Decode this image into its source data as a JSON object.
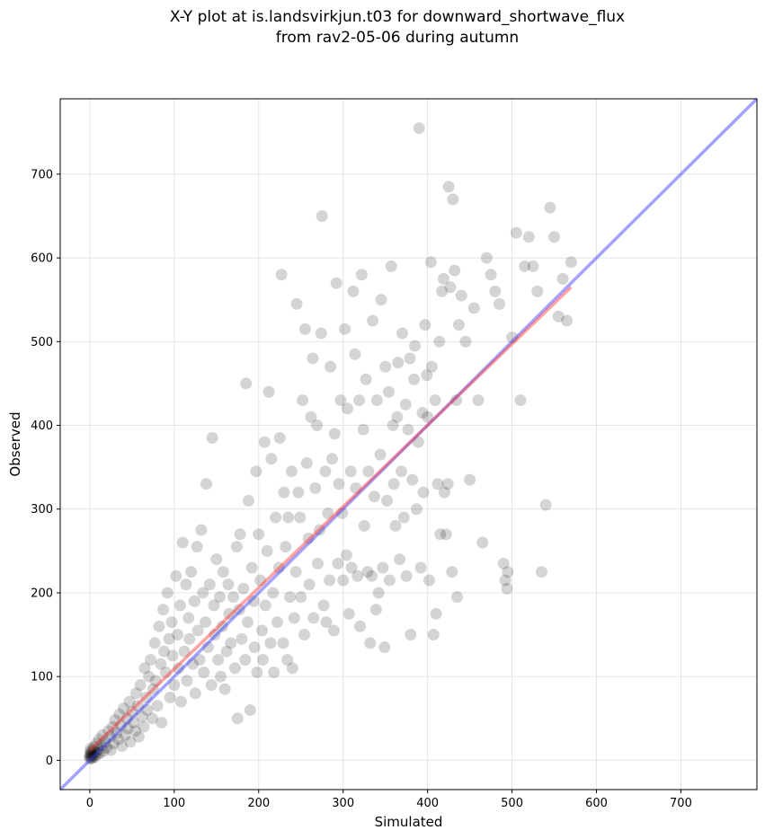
{
  "chart_data": {
    "type": "scatter",
    "title": "X-Y plot at is.landsvirkjun.t03 for downward_shortwave_flux\nfrom rav2-05-06 during autumn",
    "xlabel": "Simulated",
    "ylabel": "Observed",
    "xlim": [
      -35,
      790
    ],
    "ylim": [
      -35,
      790
    ],
    "xticks": [
      0,
      100,
      200,
      300,
      400,
      500,
      600,
      700
    ],
    "yticks": [
      0,
      100,
      200,
      300,
      400,
      500,
      600,
      700
    ],
    "grid": true,
    "point_color": "#000000",
    "identity_line": {
      "x": [
        -35,
        790
      ],
      "y": [
        -35,
        790
      ],
      "color": "#3333ff"
    },
    "regression_line": {
      "x": [
        0,
        570
      ],
      "y": [
        12,
        565
      ],
      "color": "#ff3333"
    },
    "points": [
      [
        0,
        2
      ],
      [
        0,
        4
      ],
      [
        0,
        6
      ],
      [
        1,
        8
      ],
      [
        1,
        11
      ],
      [
        1,
        14
      ],
      [
        2,
        2
      ],
      [
        2,
        5
      ],
      [
        3,
        3
      ],
      [
        3,
        9
      ],
      [
        4,
        12
      ],
      [
        5,
        6
      ],
      [
        5,
        16
      ],
      [
        6,
        4
      ],
      [
        7,
        10
      ],
      [
        8,
        20
      ],
      [
        9,
        7
      ],
      [
        10,
        13
      ],
      [
        11,
        25
      ],
      [
        12,
        9
      ],
      [
        14,
        18
      ],
      [
        15,
        30
      ],
      [
        16,
        11
      ],
      [
        18,
        22
      ],
      [
        20,
        15
      ],
      [
        22,
        35
      ],
      [
        24,
        28
      ],
      [
        25,
        12
      ],
      [
        27,
        40
      ],
      [
        28,
        20
      ],
      [
        30,
        48
      ],
      [
        32,
        33
      ],
      [
        34,
        25
      ],
      [
        35,
        55
      ],
      [
        37,
        42
      ],
      [
        38,
        17
      ],
      [
        40,
        62
      ],
      [
        42,
        30
      ],
      [
        44,
        50
      ],
      [
        45,
        38
      ],
      [
        47,
        70
      ],
      [
        48,
        22
      ],
      [
        50,
        58
      ],
      [
        52,
        45
      ],
      [
        54,
        35
      ],
      [
        55,
        80
      ],
      [
        57,
        65
      ],
      [
        58,
        28
      ],
      [
        60,
        90
      ],
      [
        62,
        52
      ],
      [
        64,
        40
      ],
      [
        65,
        110
      ],
      [
        67,
        75
      ],
      [
        68,
        60
      ],
      [
        70,
        100
      ],
      [
        72,
        120
      ],
      [
        74,
        50
      ],
      [
        75,
        85
      ],
      [
        77,
        140
      ],
      [
        78,
        95
      ],
      [
        80,
        65
      ],
      [
        82,
        160
      ],
      [
        84,
        115
      ],
      [
        85,
        45
      ],
      [
        87,
        180
      ],
      [
        88,
        130
      ],
      [
        90,
        105
      ],
      [
        92,
        200
      ],
      [
        94,
        145
      ],
      [
        95,
        75
      ],
      [
        97,
        165
      ],
      [
        98,
        125
      ],
      [
        100,
        90
      ],
      [
        102,
        220
      ],
      [
        104,
        150
      ],
      [
        105,
        110
      ],
      [
        107,
        185
      ],
      [
        108,
        70
      ],
      [
        110,
        260
      ],
      [
        112,
        130
      ],
      [
        114,
        210
      ],
      [
        115,
        95
      ],
      [
        117,
        170
      ],
      [
        118,
        145
      ],
      [
        120,
        225
      ],
      [
        122,
        115
      ],
      [
        124,
        190
      ],
      [
        125,
        80
      ],
      [
        127,
        255
      ],
      [
        128,
        155
      ],
      [
        130,
        120
      ],
      [
        132,
        275
      ],
      [
        134,
        200
      ],
      [
        135,
        105
      ],
      [
        137,
        165
      ],
      [
        138,
        330
      ],
      [
        140,
        135
      ],
      [
        142,
        210
      ],
      [
        144,
        90
      ],
      [
        145,
        385
      ],
      [
        147,
        185
      ],
      [
        148,
        150
      ],
      [
        150,
        240
      ],
      [
        152,
        120
      ],
      [
        154,
        195
      ],
      [
        155,
        100
      ],
      [
        157,
        160
      ],
      [
        158,
        225
      ],
      [
        160,
        85
      ],
      [
        162,
        130
      ],
      [
        164,
        210
      ],
      [
        165,
        175
      ],
      [
        167,
        140
      ],
      [
        170,
        195
      ],
      [
        172,
        110
      ],
      [
        174,
        255
      ],
      [
        175,
        50
      ],
      [
        177,
        180
      ],
      [
        178,
        270
      ],
      [
        180,
        145
      ],
      [
        182,
        205
      ],
      [
        184,
        120
      ],
      [
        185,
        450
      ],
      [
        187,
        165
      ],
      [
        188,
        310
      ],
      [
        190,
        60
      ],
      [
        192,
        230
      ],
      [
        194,
        190
      ],
      [
        195,
        135
      ],
      [
        197,
        345
      ],
      [
        198,
        105
      ],
      [
        200,
        270
      ],
      [
        202,
        215
      ],
      [
        204,
        155
      ],
      [
        205,
        120
      ],
      [
        207,
        380
      ],
      [
        208,
        185
      ],
      [
        210,
        250
      ],
      [
        212,
        440
      ],
      [
        214,
        140
      ],
      [
        215,
        360
      ],
      [
        217,
        200
      ],
      [
        218,
        105
      ],
      [
        220,
        290
      ],
      [
        222,
        165
      ],
      [
        224,
        230
      ],
      [
        225,
        385
      ],
      [
        227,
        580
      ],
      [
        229,
        140
      ],
      [
        230,
        320
      ],
      [
        232,
        255
      ],
      [
        234,
        120
      ],
      [
        235,
        290
      ],
      [
        237,
        195
      ],
      [
        239,
        345
      ],
      [
        240,
        110
      ],
      [
        242,
        170
      ],
      [
        244,
        225
      ],
      [
        245,
        545
      ],
      [
        247,
        320
      ],
      [
        249,
        290
      ],
      [
        250,
        195
      ],
      [
        252,
        430
      ],
      [
        254,
        150
      ],
      [
        255,
        515
      ],
      [
        257,
        355
      ],
      [
        259,
        265
      ],
      [
        260,
        210
      ],
      [
        262,
        410
      ],
      [
        264,
        480
      ],
      [
        265,
        170
      ],
      [
        267,
        325
      ],
      [
        269,
        400
      ],
      [
        270,
        235
      ],
      [
        272,
        275
      ],
      [
        274,
        510
      ],
      [
        275,
        650
      ],
      [
        277,
        185
      ],
      [
        279,
        345
      ],
      [
        280,
        165
      ],
      [
        282,
        295
      ],
      [
        284,
        215
      ],
      [
        285,
        470
      ],
      [
        287,
        360
      ],
      [
        289,
        155
      ],
      [
        290,
        390
      ],
      [
        292,
        570
      ],
      [
        294,
        235
      ],
      [
        295,
        330
      ],
      [
        297,
        430
      ],
      [
        299,
        295
      ],
      [
        300,
        215
      ],
      [
        302,
        515
      ],
      [
        304,
        245
      ],
      [
        305,
        420
      ],
      [
        307,
        175
      ],
      [
        309,
        345
      ],
      [
        310,
        230
      ],
      [
        312,
        560
      ],
      [
        314,
        485
      ],
      [
        315,
        325
      ],
      [
        317,
        220
      ],
      [
        319,
        430
      ],
      [
        320,
        160
      ],
      [
        322,
        580
      ],
      [
        324,
        395
      ],
      [
        325,
        280
      ],
      [
        327,
        455
      ],
      [
        329,
        225
      ],
      [
        330,
        345
      ],
      [
        332,
        140
      ],
      [
        334,
        220
      ],
      [
        335,
        525
      ],
      [
        337,
        315
      ],
      [
        339,
        180
      ],
      [
        340,
        430
      ],
      [
        342,
        200
      ],
      [
        344,
        365
      ],
      [
        345,
        550
      ],
      [
        347,
        230
      ],
      [
        349,
        135
      ],
      [
        350,
        470
      ],
      [
        352,
        310
      ],
      [
        354,
        440
      ],
      [
        355,
        215
      ],
      [
        357,
        590
      ],
      [
        359,
        400
      ],
      [
        360,
        330
      ],
      [
        362,
        280
      ],
      [
        364,
        410
      ],
      [
        365,
        475
      ],
      [
        367,
        240
      ],
      [
        369,
        345
      ],
      [
        370,
        510
      ],
      [
        372,
        290
      ],
      [
        374,
        425
      ],
      [
        375,
        220
      ],
      [
        377,
        395
      ],
      [
        379,
        480
      ],
      [
        380,
        150
      ],
      [
        382,
        335
      ],
      [
        384,
        455
      ],
      [
        385,
        495
      ],
      [
        387,
        300
      ],
      [
        389,
        380
      ],
      [
        390,
        755
      ],
      [
        392,
        230
      ],
      [
        394,
        415
      ],
      [
        395,
        320
      ],
      [
        397,
        520
      ],
      [
        399,
        460
      ],
      [
        400,
        410
      ],
      [
        402,
        215
      ],
      [
        404,
        595
      ],
      [
        405,
        470
      ],
      [
        407,
        150
      ],
      [
        409,
        430
      ],
      [
        410,
        175
      ],
      [
        412,
        330
      ],
      [
        414,
        500
      ],
      [
        415,
        270
      ],
      [
        417,
        560
      ],
      [
        419,
        575
      ],
      [
        420,
        320
      ],
      [
        422,
        270
      ],
      [
        424,
        330
      ],
      [
        425,
        685
      ],
      [
        427,
        565
      ],
      [
        429,
        225
      ],
      [
        430,
        670
      ],
      [
        432,
        585
      ],
      [
        434,
        430
      ],
      [
        435,
        195
      ],
      [
        437,
        520
      ],
      [
        440,
        555
      ],
      [
        445,
        500
      ],
      [
        450,
        335
      ],
      [
        455,
        540
      ],
      [
        460,
        430
      ],
      [
        465,
        260
      ],
      [
        470,
        600
      ],
      [
        475,
        580
      ],
      [
        480,
        560
      ],
      [
        485,
        545
      ],
      [
        490,
        235
      ],
      [
        492,
        215
      ],
      [
        494,
        205
      ],
      [
        495,
        225
      ],
      [
        500,
        505
      ],
      [
        505,
        630
      ],
      [
        510,
        430
      ],
      [
        515,
        590
      ],
      [
        520,
        625
      ],
      [
        525,
        590
      ],
      [
        530,
        560
      ],
      [
        535,
        225
      ],
      [
        540,
        305
      ],
      [
        545,
        660
      ],
      [
        550,
        625
      ],
      [
        555,
        530
      ],
      [
        560,
        575
      ],
      [
        565,
        525
      ],
      [
        570,
        595
      ]
    ]
  }
}
